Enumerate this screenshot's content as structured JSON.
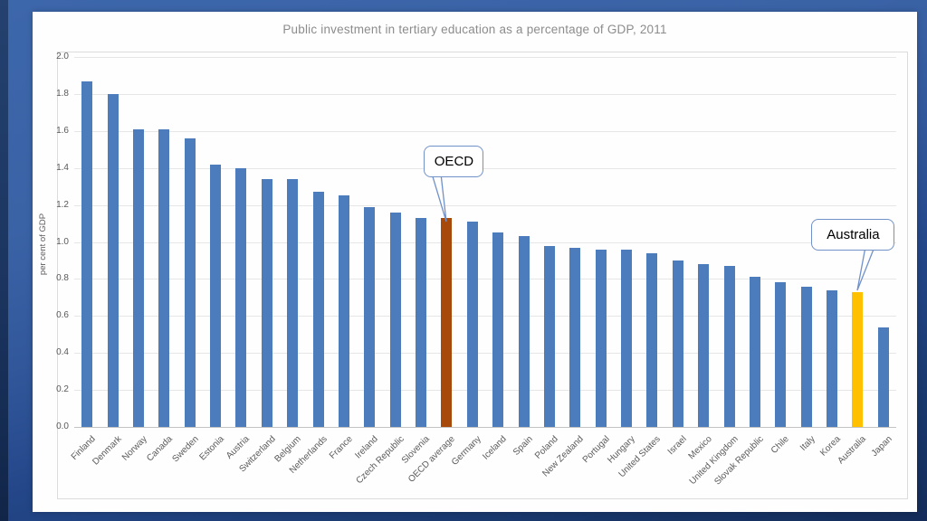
{
  "slide": {
    "background_top_color": "#3a63a6",
    "background_bottom_color": "#142c59",
    "panel_color": "#fefefe"
  },
  "chart_data": {
    "type": "bar",
    "title": "Public investment in tertiary education as a percentage of GDP, 2011",
    "xlabel": "",
    "ylabel": "per cent of GDP",
    "ylim": [
      0.0,
      2.0
    ],
    "ytick_step": 0.2,
    "grid": "horizontal",
    "legend": "none",
    "categories": [
      "Finland",
      "Denmark",
      "Norway",
      "Canada",
      "Sweden",
      "Estonia",
      "Austria",
      "Switzerland",
      "Belgium",
      "Netherlands",
      "France",
      "Ireland",
      "Czech Republic",
      "Slovenia",
      "OECD average",
      "Germany",
      "Iceland",
      "Spain",
      "Poland",
      "New Zealand",
      "Portugal",
      "Hungary",
      "United States",
      "Israel",
      "Mexico",
      "United Kingdom",
      "Slovak Republic",
      "Chile",
      "Italy",
      "Korea",
      "Australia",
      "Japan"
    ],
    "values": [
      1.87,
      1.8,
      1.61,
      1.61,
      1.56,
      1.42,
      1.4,
      1.34,
      1.34,
      1.27,
      1.25,
      1.19,
      1.16,
      1.13,
      1.13,
      1.11,
      1.05,
      1.03,
      0.98,
      0.97,
      0.96,
      0.96,
      0.94,
      0.9,
      0.88,
      0.87,
      0.81,
      0.78,
      0.76,
      0.74,
      0.73,
      0.54
    ],
    "highlighted_bars": {
      "OECD average": "#a6490b",
      "Australia": "#ffc000"
    }
  },
  "callouts": [
    {
      "label": "OECD",
      "target_category": "OECD average"
    },
    {
      "label": "Australia",
      "target_category": "Australia"
    }
  ],
  "colors": {
    "bar_default": "#4d7cbc",
    "oecd_bar": "#a6490b",
    "australia_bar": "#ffc000",
    "gridline": "#e6e6e6",
    "axis_line": "#c3c3c3",
    "title_text": "#8c8c8c",
    "tick_text": "#595959",
    "callout_border": "#7191c9"
  }
}
